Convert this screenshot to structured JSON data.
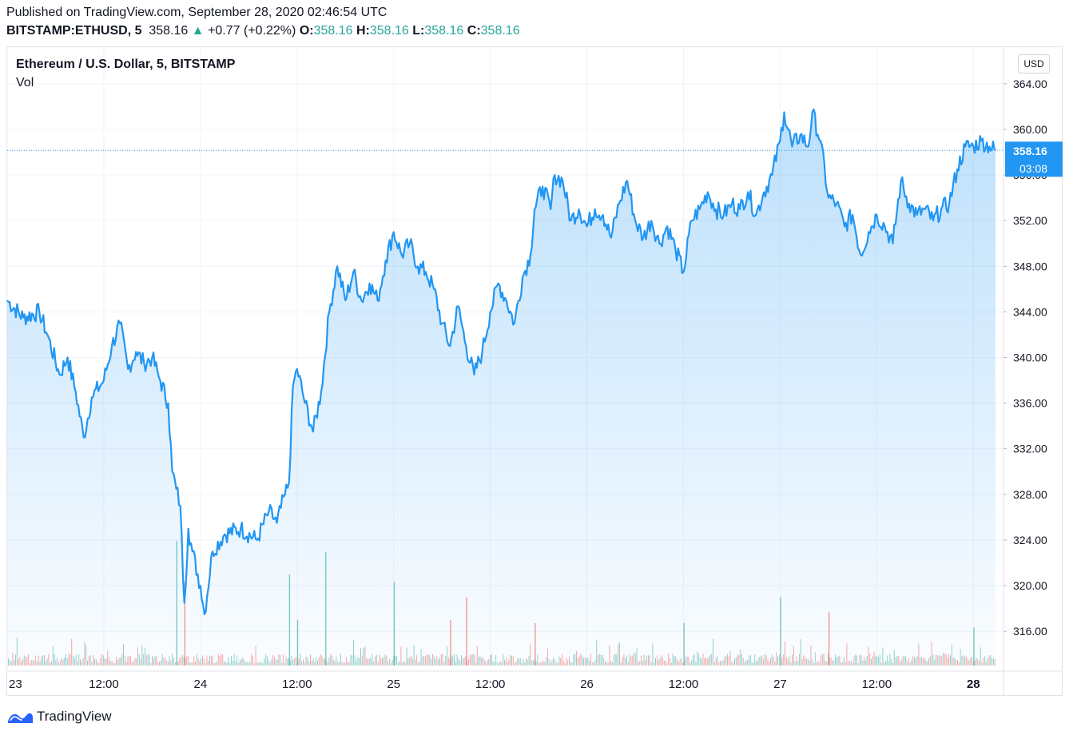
{
  "header": {
    "published": "Published on TradingView.com, September 28, 2020 02:46:54 UTC",
    "symbol": "BITSTAMP:ETHUSD, 5",
    "last": "358.16",
    "change_arrow": "▲",
    "change": "+0.77 (+0.22%)",
    "o_label": "O:",
    "o_value": "358.16",
    "h_label": "H:",
    "h_value": "358.16",
    "l_label": "L:",
    "l_value": "358.16",
    "c_label": "C:",
    "c_value": "358.16"
  },
  "legend": {
    "title": "Ethereum / U.S. Dollar, 5, BITSTAMP",
    "volume": "Vol"
  },
  "scale_button": "USD",
  "price_tag": "358.16",
  "countdown": "03:08",
  "brand": "TradingView",
  "colors": {
    "line": "#2196f3",
    "up": "#26a69a",
    "down": "#ef5350",
    "grid": "#f0f3fa",
    "text": "#131722"
  },
  "chart_data": {
    "type": "area",
    "title": "Ethereum / U.S. Dollar, 5, BITSTAMP",
    "ylim": [
      313,
      367
    ],
    "y_ticks": [
      "364.00",
      "360.00",
      "356.00",
      "352.00",
      "348.00",
      "344.00",
      "340.00",
      "336.00",
      "332.00",
      "328.00",
      "324.00",
      "320.00",
      "316.00"
    ],
    "x_ticks": [
      "23",
      "12:00",
      "24",
      "12:00",
      "25",
      "12:00",
      "26",
      "12:00",
      "27",
      "12:00",
      "28"
    ],
    "x_range": [
      "2020-09-23 00:00",
      "2020-09-28 02:45"
    ],
    "last_price": 358.16,
    "series": [
      {
        "points": [
          [
            "2020-09-23 00:00",
            345.0
          ],
          [
            "2020-09-23 02:00",
            343.5
          ],
          [
            "2020-09-23 04:00",
            344.0
          ],
          [
            "2020-09-23 05:00",
            342.0
          ],
          [
            "2020-09-23 06:30",
            338.5
          ],
          [
            "2020-09-23 07:30",
            340.0
          ],
          [
            "2020-09-23 08:30",
            337.0
          ],
          [
            "2020-09-23 09:30",
            333.0
          ],
          [
            "2020-09-23 10:30",
            336.5
          ],
          [
            "2020-09-23 12:00",
            338.0
          ],
          [
            "2020-09-23 13:00",
            341.0
          ],
          [
            "2020-09-23 14:00",
            343.0
          ],
          [
            "2020-09-23 15:00",
            339.0
          ],
          [
            "2020-09-23 16:00",
            340.5
          ],
          [
            "2020-09-23 17:00",
            339.5
          ],
          [
            "2020-09-23 18:00",
            340.0
          ],
          [
            "2020-09-23 19:00",
            338.0
          ],
          [
            "2020-09-23 20:00",
            336.0
          ],
          [
            "2020-09-23 20:30",
            330.0
          ],
          [
            "2020-09-23 21:00",
            328.5
          ],
          [
            "2020-09-23 21:30",
            327.0
          ],
          [
            "2020-09-23 22:00",
            318.5
          ],
          [
            "2020-09-23 22:30",
            325.0
          ],
          [
            "2020-09-23 23:00",
            323.0
          ],
          [
            "2020-09-24 00:00",
            320.0
          ],
          [
            "2020-09-24 00:30",
            317.5
          ],
          [
            "2020-09-24 01:30",
            323.0
          ],
          [
            "2020-09-24 03:00",
            324.5
          ],
          [
            "2020-09-24 05:00",
            325.0
          ],
          [
            "2020-09-24 07:00",
            324.0
          ],
          [
            "2020-09-24 08:30",
            326.5
          ],
          [
            "2020-09-24 09:30",
            325.5
          ],
          [
            "2020-09-24 10:30",
            328.0
          ],
          [
            "2020-09-24 11:00",
            329.0
          ],
          [
            "2020-09-24 11:30",
            337.5
          ],
          [
            "2020-09-24 12:00",
            339.0
          ],
          [
            "2020-09-24 13:00",
            336.0
          ],
          [
            "2020-09-24 14:00",
            333.5
          ],
          [
            "2020-09-24 15:00",
            337.0
          ],
          [
            "2020-09-24 16:00",
            344.0
          ],
          [
            "2020-09-24 17:00",
            348.0
          ],
          [
            "2020-09-24 18:00",
            345.0
          ],
          [
            "2020-09-24 19:00",
            347.5
          ],
          [
            "2020-09-24 20:00",
            345.0
          ],
          [
            "2020-09-24 21:00",
            346.5
          ],
          [
            "2020-09-24 22:00",
            345.0
          ],
          [
            "2020-09-24 23:00",
            348.5
          ],
          [
            "2020-09-25 00:00",
            351.0
          ],
          [
            "2020-09-25 01:00",
            349.0
          ],
          [
            "2020-09-25 02:00",
            350.0
          ],
          [
            "2020-09-25 03:00",
            348.0
          ],
          [
            "2020-09-25 04:00",
            347.5
          ],
          [
            "2020-09-25 05:00",
            346.0
          ],
          [
            "2020-09-25 06:00",
            343.0
          ],
          [
            "2020-09-25 07:00",
            341.0
          ],
          [
            "2020-09-25 08:00",
            344.5
          ],
          [
            "2020-09-25 09:00",
            341.0
          ],
          [
            "2020-09-25 10:00",
            338.5
          ],
          [
            "2020-09-25 11:00",
            340.5
          ],
          [
            "2020-09-25 12:00",
            344.0
          ],
          [
            "2020-09-25 13:00",
            346.5
          ],
          [
            "2020-09-25 14:00",
            345.0
          ],
          [
            "2020-09-25 15:00",
            343.0
          ],
          [
            "2020-09-25 16:00",
            347.0
          ],
          [
            "2020-09-25 17:00",
            349.0
          ],
          [
            "2020-09-25 17:30",
            353.0
          ],
          [
            "2020-09-25 18:30",
            355.0
          ],
          [
            "2020-09-25 19:30",
            353.0
          ],
          [
            "2020-09-25 20:00",
            356.0
          ],
          [
            "2020-09-25 21:00",
            355.5
          ],
          [
            "2020-09-25 22:00",
            352.0
          ],
          [
            "2020-09-25 23:00",
            353.0
          ],
          [
            "2020-09-26 00:00",
            351.5
          ],
          [
            "2020-09-26 01:00",
            353.0
          ],
          [
            "2020-09-26 02:00",
            352.5
          ],
          [
            "2020-09-26 03:00",
            350.5
          ],
          [
            "2020-09-26 04:00",
            353.5
          ],
          [
            "2020-09-26 05:00",
            355.5
          ],
          [
            "2020-09-26 06:00",
            352.0
          ],
          [
            "2020-09-26 07:00",
            350.5
          ],
          [
            "2020-09-26 08:00",
            352.0
          ],
          [
            "2020-09-26 09:00",
            350.0
          ],
          [
            "2020-09-26 10:00",
            351.5
          ],
          [
            "2020-09-26 11:00",
            349.5
          ],
          [
            "2020-09-26 12:00",
            347.5
          ],
          [
            "2020-09-26 13:00",
            352.0
          ],
          [
            "2020-09-26 14:00",
            353.0
          ],
          [
            "2020-09-26 15:00",
            354.5
          ],
          [
            "2020-09-26 16:00",
            353.0
          ],
          [
            "2020-09-26 17:00",
            352.5
          ],
          [
            "2020-09-26 18:00",
            353.5
          ],
          [
            "2020-09-26 19:00",
            353.0
          ],
          [
            "2020-09-26 20:00",
            354.5
          ],
          [
            "2020-09-26 21:00",
            352.5
          ],
          [
            "2020-09-26 22:00",
            354.5
          ],
          [
            "2020-09-26 23:00",
            356.0
          ],
          [
            "2020-09-27 00:00",
            359.0
          ],
          [
            "2020-09-27 00:30",
            361.5
          ],
          [
            "2020-09-27 01:30",
            358.5
          ],
          [
            "2020-09-27 02:30",
            359.5
          ],
          [
            "2020-09-27 03:30",
            358.5
          ],
          [
            "2020-09-27 04:00",
            361.5
          ],
          [
            "2020-09-27 05:00",
            359.0
          ],
          [
            "2020-09-27 06:00",
            354.0
          ],
          [
            "2020-09-27 07:00",
            353.5
          ],
          [
            "2020-09-27 08:00",
            351.5
          ],
          [
            "2020-09-27 09:00",
            352.5
          ],
          [
            "2020-09-27 10:00",
            349.0
          ],
          [
            "2020-09-27 11:00",
            351.0
          ],
          [
            "2020-09-27 12:00",
            352.5
          ],
          [
            "2020-09-27 13:00",
            351.5
          ],
          [
            "2020-09-27 14:00",
            350.0
          ],
          [
            "2020-09-27 15:00",
            355.5
          ],
          [
            "2020-09-27 16:00",
            353.5
          ],
          [
            "2020-09-27 17:00",
            352.5
          ],
          [
            "2020-09-27 18:00",
            353.0
          ],
          [
            "2020-09-27 19:00",
            352.0
          ],
          [
            "2020-09-27 20:00",
            353.0
          ],
          [
            "2020-09-27 21:00",
            353.5
          ],
          [
            "2020-09-27 22:00",
            356.5
          ],
          [
            "2020-09-27 23:00",
            358.5
          ],
          [
            "2020-09-28 00:00",
            358.5
          ],
          [
            "2020-09-28 01:00",
            359.0
          ],
          [
            "2020-09-28 02:00",
            358.5
          ],
          [
            "2020-09-28 02:45",
            358.16
          ]
        ]
      }
    ],
    "volume": {
      "name": "Vol",
      "spikes": [
        [
          "2020-09-23 21:00",
          "up",
          0.82
        ],
        [
          "2020-09-23 22:00",
          "down",
          0.55
        ],
        [
          "2020-09-24 11:00",
          "up",
          0.6
        ],
        [
          "2020-09-24 12:00",
          "up",
          0.3
        ],
        [
          "2020-09-24 15:30",
          "up",
          0.75
        ],
        [
          "2020-09-25 00:00",
          "up",
          0.55
        ],
        [
          "2020-09-25 07:00",
          "down",
          0.3
        ],
        [
          "2020-09-25 09:00",
          "down",
          0.45
        ],
        [
          "2020-09-25 17:30",
          "down",
          0.28
        ],
        [
          "2020-09-26 12:00",
          "up",
          0.28
        ],
        [
          "2020-09-27 00:00",
          "up",
          0.45
        ],
        [
          "2020-09-27 06:00",
          "down",
          0.35
        ],
        [
          "2020-09-28 00:00",
          "up",
          0.25
        ]
      ]
    }
  }
}
